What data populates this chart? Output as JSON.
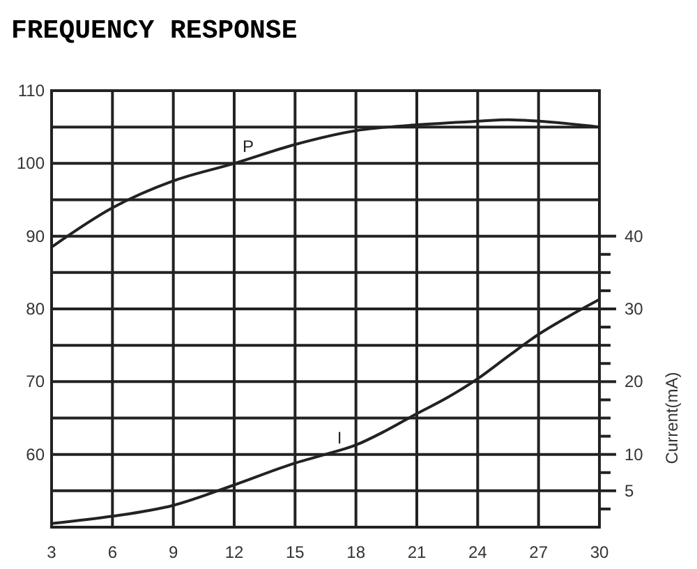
{
  "chart_data": {
    "type": "line",
    "title": "FREQUENCY RESPONSE",
    "y2label": "Current(mA)",
    "grid": true,
    "marker": "none",
    "line_style": "solid",
    "xlim": [
      3,
      30
    ],
    "xticks": [
      3,
      6,
      9,
      12,
      15,
      18,
      21,
      24,
      27,
      30
    ],
    "ylim": [
      50,
      110
    ],
    "yticks": [
      {
        "value": 55,
        "label": null
      },
      60,
      {
        "value": 65,
        "label": null
      },
      70,
      {
        "value": 75,
        "label": null
      },
      80,
      {
        "value": 85,
        "label": null
      },
      90,
      {
        "value": 95,
        "label": null
      },
      100,
      {
        "value": 105,
        "label": null
      },
      110
    ],
    "y2lim": [
      0,
      60
    ],
    "y2ticks": [
      {
        "value": 2.5,
        "label": null
      },
      5,
      {
        "value": 7.5,
        "label": null
      },
      10,
      {
        "value": 12.5,
        "label": null
      },
      {
        "value": 15,
        "label": null
      },
      {
        "value": 17.5,
        "label": null
      },
      20,
      {
        "value": 22.5,
        "label": null
      },
      {
        "value": 25,
        "label": null
      },
      {
        "value": 27.5,
        "label": null
      },
      30,
      {
        "value": 32.5,
        "label": null
      },
      {
        "value": 35,
        "label": null
      },
      {
        "value": 37.5,
        "label": null
      },
      40
    ],
    "series": [
      {
        "name": "P",
        "color": "#222222",
        "x": [
          3,
          6,
          9,
          12,
          15,
          18,
          21,
          24,
          25.5,
          27,
          30
        ],
        "values": [
          88.5,
          93.9,
          97.6,
          100,
          102.6,
          104.5,
          105.3,
          105.8,
          106,
          105.8,
          105
        ]
      },
      {
        "name": "I",
        "color": "#222222",
        "axis": "y2",
        "x": [
          3,
          6,
          9,
          12,
          15,
          16.5,
          18,
          19.5,
          21,
          22.5,
          24,
          25.5,
          27,
          28.5,
          30
        ],
        "values": [
          0.5,
          1.5,
          3,
          5.8,
          8.8,
          10,
          11.3,
          13.3,
          15.6,
          17.8,
          20.4,
          23.5,
          26.5,
          29,
          31.3
        ]
      }
    ]
  }
}
